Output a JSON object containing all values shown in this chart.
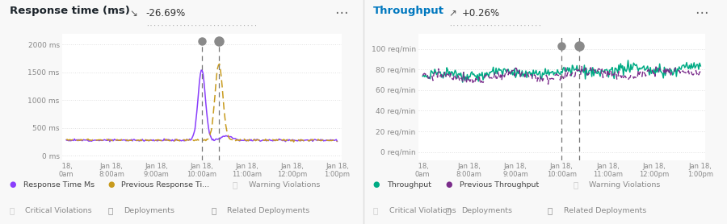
{
  "left_title": "Response time (ms)",
  "left_arrow": "↘",
  "left_pct": "-26.69%",
  "right_title": "Throughput",
  "right_arrow": "↗",
  "right_pct": "+0.26%",
  "bg_color": "#f8f8f8",
  "panel_bg": "#ffffff",
  "grid_color": "#e0e0e0",
  "axis_label_color": "#888888",
  "title_color_left": "#1d252c",
  "title_color_right": "#0078bf",
  "pct_color": "#333333",
  "left_yticks": [
    "0 ms",
    "500 ms",
    "1000 ms",
    "1500 ms",
    "2000 ms"
  ],
  "left_yvals": [
    0,
    500,
    1000,
    1500,
    2000
  ],
  "right_yticks": [
    "0 req/min",
    "20 req/min",
    "40 req/min",
    "60 req/min",
    "80 req/min",
    "100 req/min"
  ],
  "right_yvals": [
    0,
    20,
    40,
    60,
    80,
    100
  ],
  "xtick_labels": [
    " 18,\n0am",
    "Jan 18,\n8:00am",
    "Jan 18,\n9:00am",
    "Jan 18,\n10:00am",
    "Jan 18,\n11:00am",
    "Jan 18,\n12:00pm",
    "Jan 18,\n1:00pm"
  ],
  "xtick_pos": [
    0,
    1,
    2,
    3,
    4,
    5,
    6
  ],
  "deploy_line1": 3.0,
  "deploy_line2": 3.38,
  "purple_color": "#8a3ffc",
  "gold_color": "#c89b1e",
  "teal_color": "#00ab84",
  "prev_purple_color": "#7b2d8b",
  "dot_color": "#8a8a8a",
  "separator_color": "#cccccc"
}
